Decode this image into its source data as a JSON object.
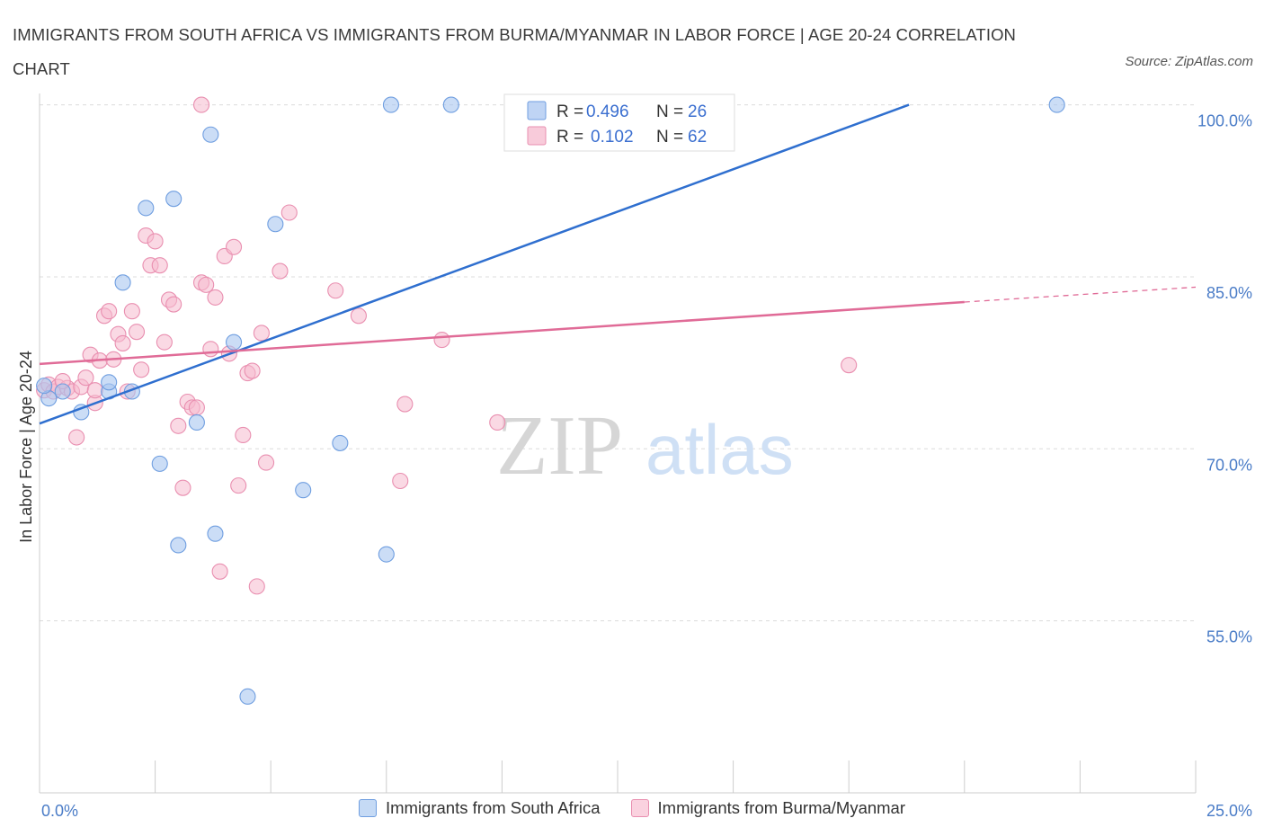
{
  "header": {
    "title": "IMMIGRANTS FROM SOUTH AFRICA VS IMMIGRANTS FROM BURMA/MYANMAR IN LABOR FORCE | AGE 20-24 CORRELATION CHART",
    "source": "Source: ZipAtlas.com"
  },
  "watermark": {
    "zip": "ZIP",
    "atlas": "atlas"
  },
  "colors": {
    "blue": "#4a7cc7",
    "blue_fill": "#a9c6f0",
    "blue_line": "#2f6fcf",
    "pink": "#e07aa0",
    "pink_fill": "#f6bacd",
    "pink_line": "#e06b97"
  },
  "legend_top": {
    "rows": [
      {
        "r_label": "R = ",
        "r_value": "0.496",
        "n_label": "N = ",
        "n_value": "26"
      },
      {
        "r_label": "R = ",
        "r_value": "0.102",
        "n_label": "N = ",
        "n_value": "62"
      }
    ]
  },
  "legend_bottom": {
    "items": [
      {
        "label": "Immigrants from South Africa"
      },
      {
        "label": "Immigrants from Burma/Myanmar"
      }
    ]
  },
  "chart_data": {
    "type": "scatter",
    "title": "IMMIGRANTS FROM SOUTH AFRICA VS IMMIGRANTS FROM BURMA/MYANMAR IN LABOR FORCE | AGE 20-24 CORRELATION CHART",
    "xlabel": "",
    "ylabel": "In Labor Force | Age 20-24",
    "xlim": [
      0,
      25
    ],
    "ylim": [
      40,
      101.3
    ],
    "x_ticks": [
      "0.0%",
      "25.0%"
    ],
    "y_ticks": [
      {
        "value": 100,
        "label": "100.0%"
      },
      {
        "value": 85,
        "label": "85.0%"
      },
      {
        "value": 70,
        "label": "70.0%"
      },
      {
        "value": 55,
        "label": "55.0%"
      }
    ],
    "grid": true,
    "legend_position": "top-center",
    "series": [
      {
        "name": "Immigrants from South Africa",
        "r": 0.496,
        "n": 26,
        "trend": {
          "x": [
            0,
            18.8
          ],
          "y": [
            72.2,
            100.0
          ]
        },
        "points": [
          [
            0.2,
            74.4
          ],
          [
            0.5,
            75.0
          ],
          [
            0.9,
            73.2
          ],
          [
            1.5,
            75.0
          ],
          [
            2.0,
            75.0
          ],
          [
            1.5,
            75.8
          ],
          [
            1.8,
            84.5
          ],
          [
            2.3,
            91.0
          ],
          [
            2.6,
            68.7
          ],
          [
            2.9,
            91.8
          ],
          [
            3.0,
            61.6
          ],
          [
            3.4,
            72.3
          ],
          [
            3.7,
            97.4
          ],
          [
            3.8,
            62.6
          ],
          [
            4.2,
            79.3
          ],
          [
            4.5,
            48.4
          ],
          [
            5.1,
            89.6
          ],
          [
            5.7,
            66.4
          ],
          [
            6.5,
            70.5
          ],
          [
            7.5,
            60.8
          ],
          [
            7.6,
            100.0
          ],
          [
            8.9,
            100.0
          ],
          [
            12.3,
            100.0
          ],
          [
            13.7,
            100.0
          ],
          [
            22.0,
            100.0
          ],
          [
            0.1,
            75.5
          ]
        ]
      },
      {
        "name": "Immigrants from Burma/Myanmar",
        "r": 0.102,
        "n": 62,
        "trend": {
          "x": [
            0,
            20.0
          ],
          "y": [
            77.4,
            82.8
          ]
        },
        "trend_dashed": {
          "x": [
            20.0,
            25.0
          ],
          "y": [
            82.8,
            84.1
          ]
        },
        "points": [
          [
            0.1,
            75.1
          ],
          [
            0.2,
            75.6
          ],
          [
            0.3,
            75.0
          ],
          [
            0.4,
            75.4
          ],
          [
            0.6,
            75.3
          ],
          [
            0.7,
            75.0
          ],
          [
            0.8,
            71.0
          ],
          [
            0.9,
            75.4
          ],
          [
            1.0,
            76.2
          ],
          [
            1.1,
            78.2
          ],
          [
            1.2,
            74.0
          ],
          [
            1.3,
            77.7
          ],
          [
            1.4,
            81.6
          ],
          [
            1.5,
            82.0
          ],
          [
            1.6,
            77.8
          ],
          [
            1.7,
            80.0
          ],
          [
            1.8,
            79.2
          ],
          [
            1.9,
            75.0
          ],
          [
            2.0,
            82.0
          ],
          [
            2.1,
            80.2
          ],
          [
            2.2,
            76.9
          ],
          [
            2.3,
            88.6
          ],
          [
            2.4,
            86.0
          ],
          [
            2.5,
            88.1
          ],
          [
            2.6,
            86.0
          ],
          [
            2.7,
            79.3
          ],
          [
            2.8,
            83.0
          ],
          [
            2.9,
            82.6
          ],
          [
            3.0,
            72.0
          ],
          [
            3.1,
            66.6
          ],
          [
            3.2,
            74.1
          ],
          [
            3.3,
            73.6
          ],
          [
            3.4,
            73.6
          ],
          [
            3.5,
            84.5
          ],
          [
            3.6,
            84.3
          ],
          [
            3.7,
            78.7
          ],
          [
            3.8,
            83.2
          ],
          [
            3.9,
            59.3
          ],
          [
            4.0,
            86.8
          ],
          [
            4.1,
            78.3
          ],
          [
            4.2,
            87.6
          ],
          [
            4.3,
            66.8
          ],
          [
            4.4,
            71.2
          ],
          [
            4.5,
            76.6
          ],
          [
            4.6,
            76.8
          ],
          [
            4.7,
            58.0
          ],
          [
            4.8,
            80.1
          ],
          [
            4.9,
            68.8
          ],
          [
            5.2,
            85.5
          ],
          [
            5.4,
            90.6
          ],
          [
            6.4,
            83.8
          ],
          [
            6.9,
            81.6
          ],
          [
            7.8,
            67.2
          ],
          [
            7.9,
            73.9
          ],
          [
            8.7,
            79.5
          ],
          [
            9.9,
            72.3
          ],
          [
            11.3,
            100.0
          ],
          [
            13.0,
            100.0
          ],
          [
            17.5,
            77.3
          ],
          [
            3.5,
            100.0
          ],
          [
            0.5,
            75.9
          ],
          [
            1.2,
            75.1
          ]
        ]
      }
    ]
  }
}
